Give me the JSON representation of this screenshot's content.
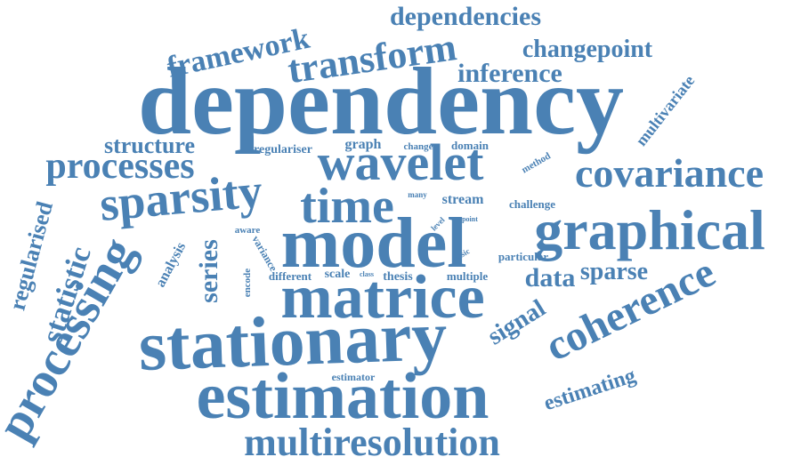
{
  "colors": {
    "word": "#4a81b4",
    "background": "#ffffff"
  },
  "words": [
    "dependency",
    "model",
    "stationary",
    "estimation",
    "matrice",
    "graphical",
    "wavelet",
    "time",
    "sparsity",
    "covariance",
    "processing",
    "coherence",
    "multiresolution",
    "transform",
    "processes",
    "framework",
    "dependencies",
    "changepoint",
    "inference",
    "structure",
    "statistic",
    "regularised",
    "series",
    "data",
    "sparse",
    "signal",
    "estimating",
    "multivariate",
    "regulariser",
    "graph",
    "change",
    "domain",
    "method",
    "stream",
    "challenge",
    "many",
    "level",
    "point",
    "particular",
    "basic",
    "aware",
    "analysis",
    "variance",
    "encode",
    "different",
    "scale",
    "class",
    "thesis",
    "multiple",
    "estimator"
  ]
}
